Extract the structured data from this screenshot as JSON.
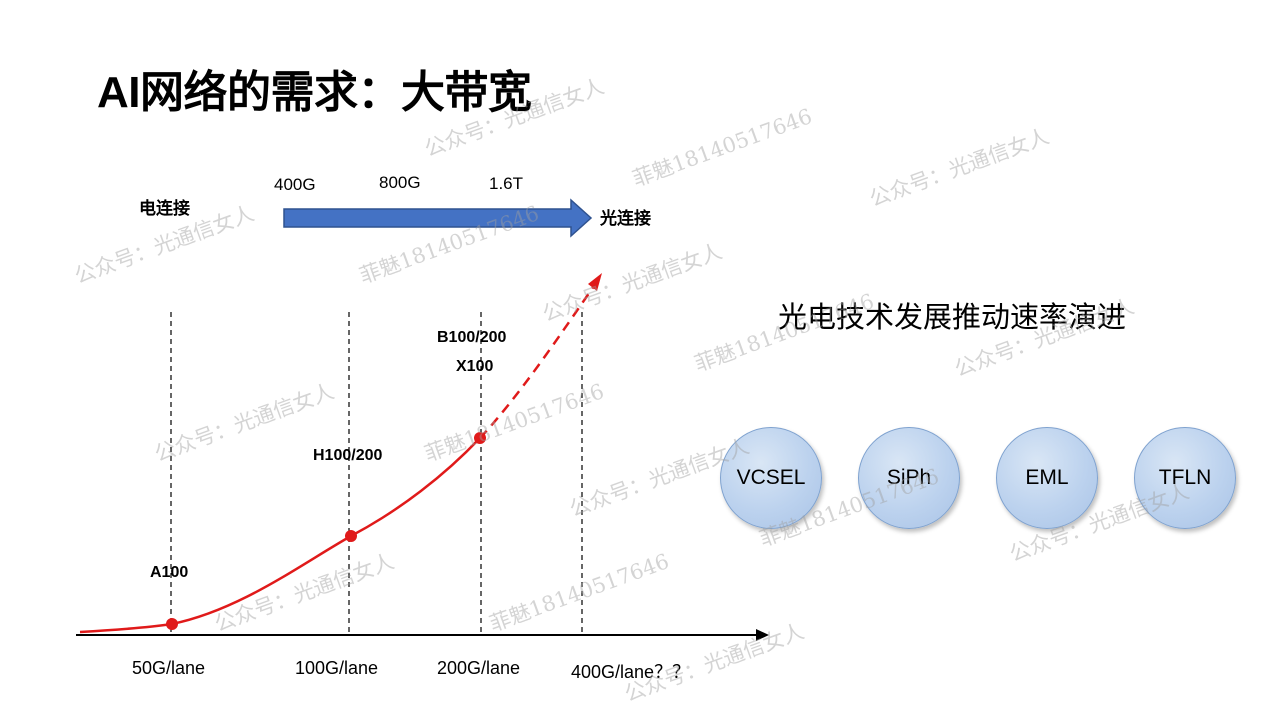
{
  "title": "AI网络的需求：大带宽",
  "arrow_top": {
    "left_label": "电连接",
    "right_label": "光连接",
    "speeds": [
      "400G",
      "800G",
      "1.6T"
    ]
  },
  "subtitle": "光电技术发展推动速率演进",
  "technologies": [
    "VCSEL",
    "SiPh",
    "EML",
    "TFLN"
  ],
  "gpus": {
    "a100": "A100",
    "h100": "H100/200",
    "b100_line1": "B100/200",
    "b100_line2": "X100"
  },
  "lanes": [
    "50G/lane",
    "100G/lane",
    "200G/lane",
    "400G/lane？？"
  ],
  "watermarks": {
    "account": "公众号：光通信女人",
    "contact": "菲魅18140517646"
  },
  "colors": {
    "arrow": "#4472c4",
    "curve": "#e01a1a",
    "bubble": "#bcd2ee"
  }
}
